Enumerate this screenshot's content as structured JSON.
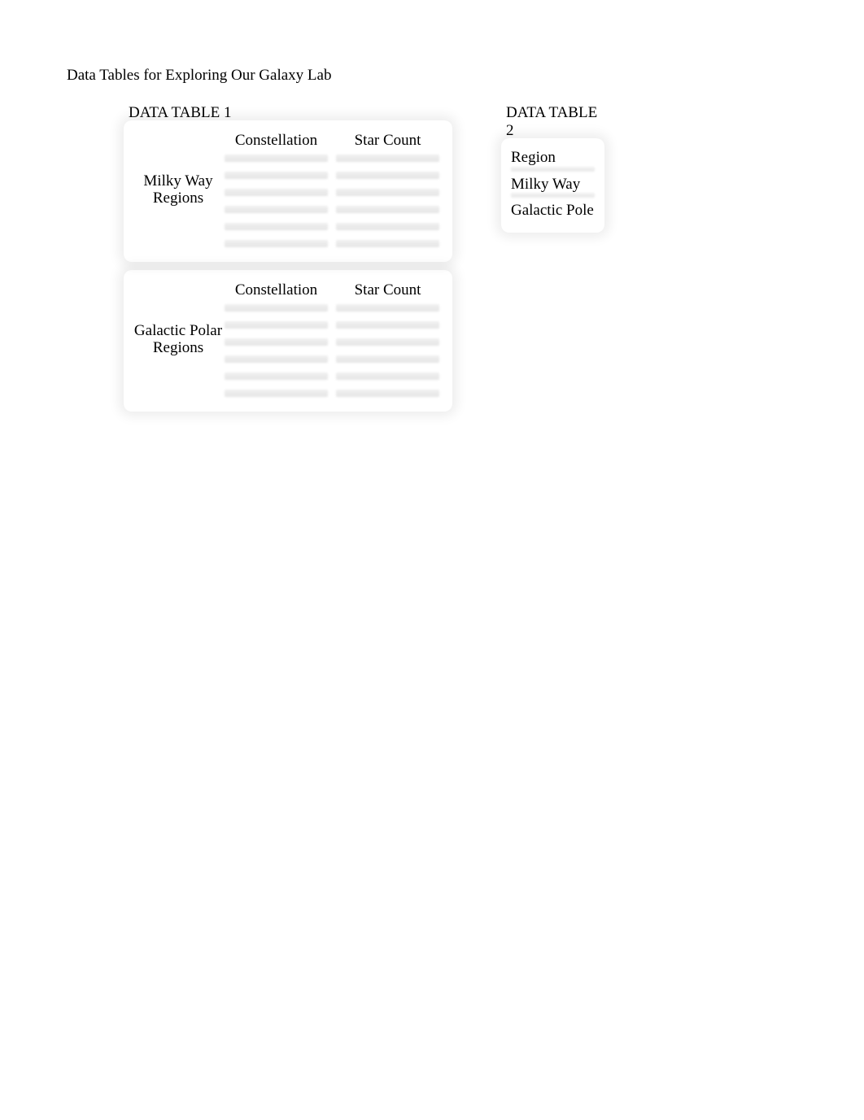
{
  "page": {
    "title": "Data Tables for Exploring Our Galaxy Lab",
    "background_color": "#ffffff",
    "text_color": "#000000"
  },
  "table1": {
    "heading": "DATA TABLE 1",
    "sections": [
      {
        "region_label_line1": "Milky Way",
        "region_label_line2": "Regions",
        "col1_header": "Constellation",
        "col2_header": "Star Count",
        "blank_row_count": 6
      },
      {
        "region_label_line1": "Galactic Polar",
        "region_label_line2": "Regions",
        "col1_header": "Constellation",
        "col2_header": "Star Count",
        "blank_row_count": 6
      }
    ]
  },
  "table2": {
    "heading": "DATA TABLE 2",
    "rows": [
      {
        "label": "Region"
      },
      {
        "label": "Milky Way"
      },
      {
        "label": "Galactic Pole"
      }
    ]
  },
  "styling": {
    "heading_fontsize": 19,
    "body_fontsize": 19,
    "blur_line_color": "#d9d9d9",
    "card_shadow_color": "rgba(0,0,0,0.07)"
  }
}
